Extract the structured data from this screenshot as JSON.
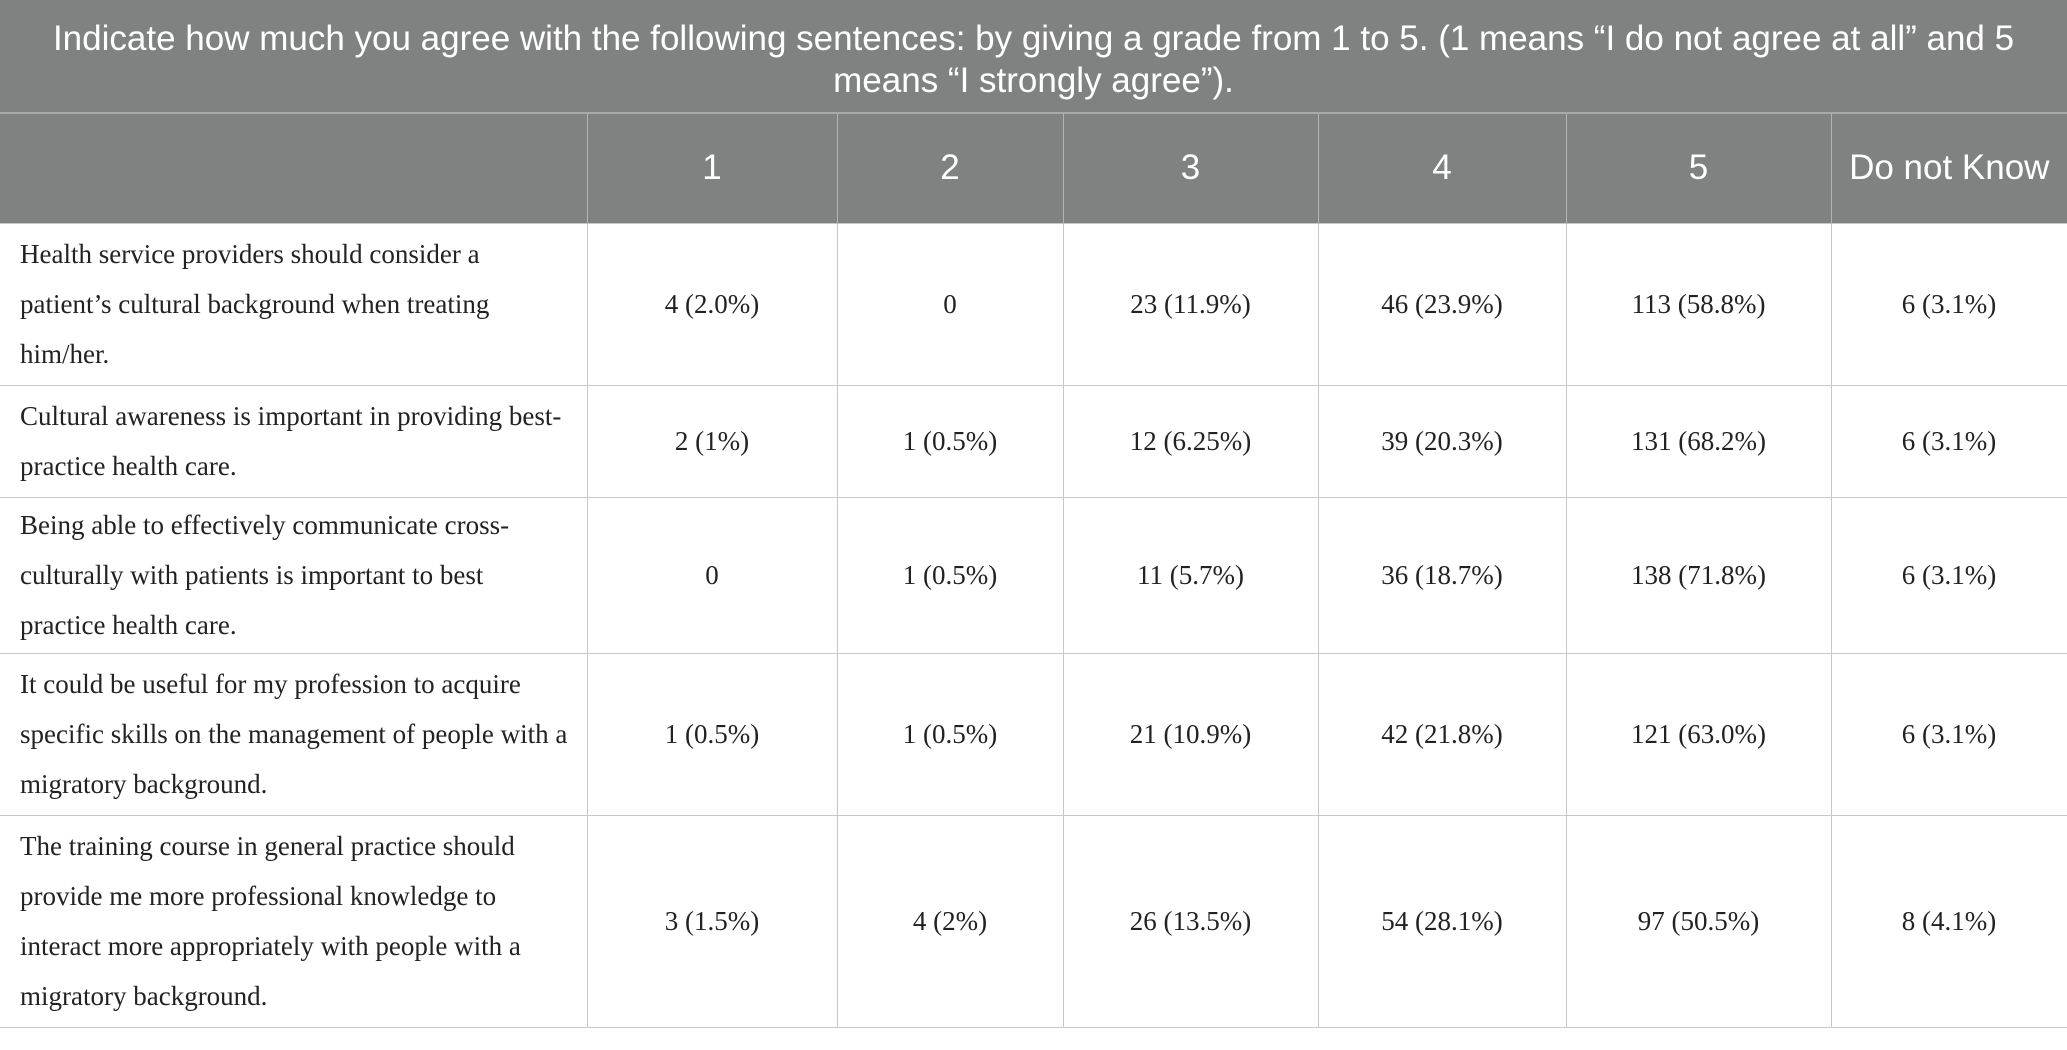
{
  "table": {
    "caption": "Indicate how much you agree with the following sentences: by giving a grade from 1 to 5. (1 means “I do not agree at all” and 5 means “I strongly agree”).",
    "columns": [
      "",
      "1",
      "2",
      "3",
      "4",
      "5",
      "Do not Know"
    ],
    "rows": [
      {
        "statement": "Health service providers should consider a patient’s cultural background when treating him/her.",
        "values": [
          "4 (2.0%)",
          "0",
          "23 (11.9%)",
          "46 (23.9%)",
          "113 (58.8%)",
          "6 (3.1%)"
        ]
      },
      {
        "statement": "Cultural awareness is important in providing best-practice health care.",
        "values": [
          "2 (1%)",
          "1 (0.5%)",
          "12 (6.25%)",
          "39 (20.3%)",
          "131 (68.2%)",
          "6 (3.1%)"
        ]
      },
      {
        "statement": "Being able to effectively communicate cross-culturally with patients is important to best practice health care.",
        "values": [
          "0",
          "1 (0.5%)",
          "11 (5.7%)",
          "36 (18.7%)",
          "138 (71.8%)",
          "6 (3.1%)"
        ]
      },
      {
        "statement": "It could be useful for my profession to acquire specific skills on the management of people with a migratory background.",
        "values": [
          "1 (0.5%)",
          "1 (0.5%)",
          "21 (10.9%)",
          "42 (21.8%)",
          "121 (63.0%)",
          "6 (3.1%)"
        ]
      },
      {
        "statement": "The training course in general practice should provide me more professional knowledge to interact more appropriately with people with a migratory background.",
        "values": [
          "3 (1.5%)",
          "4 (2%)",
          "26 (13.5%)",
          "54 (28.1%)",
          "97 (50.5%)",
          "8 (4.1%)"
        ]
      }
    ]
  },
  "colors": {
    "header_bg": "#808281",
    "header_text": "#ffffff",
    "grid": "#c8c8c8",
    "body_text": "#222222"
  }
}
